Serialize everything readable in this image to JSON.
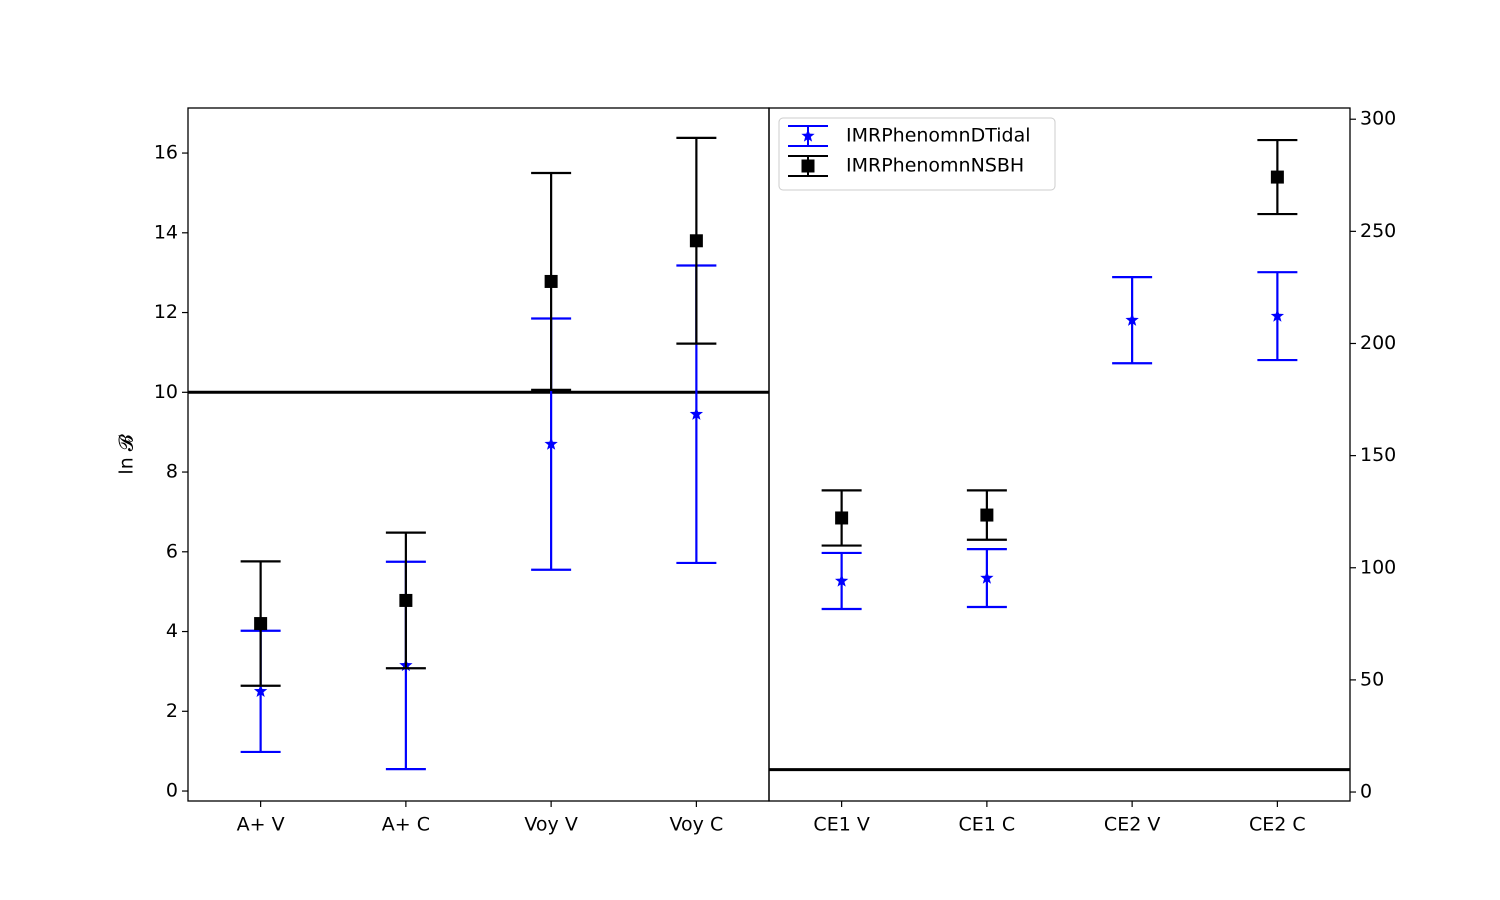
{
  "chart_data": [
    {
      "type": "errorbar",
      "ylabel": "ln 𝓑",
      "categories": [
        "A+ V",
        "A+ C",
        "Voy V",
        "Voy C"
      ],
      "ylim": [
        -0.25,
        17.13
      ],
      "yticks": [
        0,
        2,
        4,
        6,
        8,
        10,
        12,
        14,
        16
      ],
      "yaxis_side": "left",
      "hline": 10,
      "series": [
        {
          "color": "#0000ff",
          "marker": "star",
          "values": [
            2.5,
            3.15,
            8.7,
            9.45
          ],
          "errors": [
            1.52,
            2.6,
            3.15,
            3.73
          ]
        },
        {
          "color": "#000000",
          "marker": "square",
          "values": [
            4.2,
            4.78,
            12.78,
            13.8
          ],
          "errors": [
            1.56,
            1.7,
            2.72,
            2.58
          ]
        }
      ]
    },
    {
      "type": "errorbar",
      "categories": [
        "CE1 V",
        "CE1 C",
        "CE2 V",
        "CE2 C"
      ],
      "ylim": [
        -4,
        305
      ],
      "yticks": [
        0,
        50,
        100,
        150,
        200,
        250,
        300
      ],
      "yaxis_side": "right",
      "hline": 10,
      "legend": "upper left",
      "series": [
        {
          "name": "IMRPhenomnDTidal",
          "color": "#0000ff",
          "marker": "star",
          "values": [
            94.1,
            95.4,
            210.4,
            212.2
          ],
          "errors": [
            12.5,
            12.9,
            19.2,
            19.6
          ]
        },
        {
          "name": "IMRPhenomnNSBH",
          "color": "#000000",
          "marker": "square",
          "values": [
            122.2,
            123.5,
            null,
            274.2
          ],
          "errors": [
            12.3,
            11,
            null,
            16.5
          ]
        }
      ]
    }
  ]
}
